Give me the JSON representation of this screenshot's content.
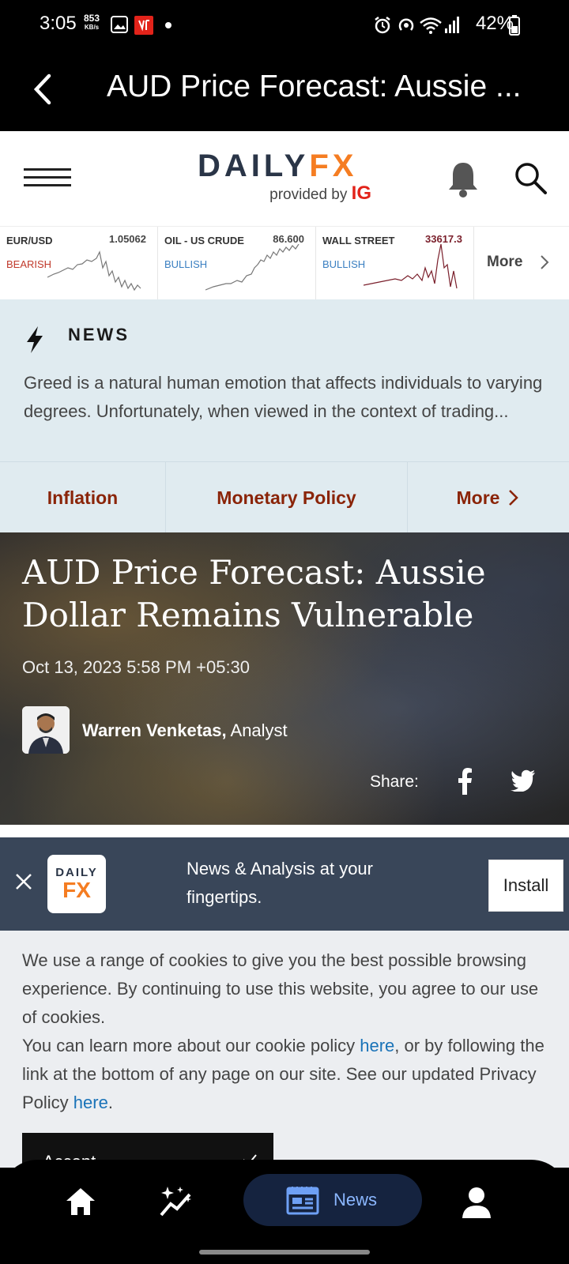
{
  "status_bar": {
    "time": "3:05",
    "net_speed": "853",
    "net_unit": "KB/s",
    "battery": "42%"
  },
  "app_bar": {
    "title": "AUD Price Forecast: Aussie ..."
  },
  "site_header": {
    "logo_dai": "DA",
    "logo_i": "I",
    "logo_ly": "LY",
    "logo_fx": "FX",
    "provided_by": "provided by",
    "ig": "IG"
  },
  "tickers": [
    {
      "name": "EUR/USD",
      "price": "1.05062",
      "sentiment": "BEARISH",
      "color": "#c0392b"
    },
    {
      "name": "OIL - US CRUDE",
      "price": "86.600",
      "sentiment": "BULLISH",
      "color": "#3a7fc1"
    },
    {
      "name": "WALL STREET",
      "price": "33617.3",
      "sentiment": "BULLISH",
      "color": "#3a7fc1"
    }
  ],
  "tickers_more": "More",
  "news_band": {
    "label": "NEWS",
    "description": "Greed is a natural human emotion that affects individuals to varying degrees. Unfortunately, when viewed in the context of trading..."
  },
  "topics": [
    "Inflation",
    "Monetary Policy",
    "More"
  ],
  "article": {
    "title": "AUD Price Forecast: Aussie Dollar Remains Vulnerable",
    "date": "Oct 13, 2023 5:58 PM +05:30",
    "author_name": "Warren Venketas,",
    "author_role": "Analyst",
    "share_label": "Share:"
  },
  "install_banner": {
    "logo_top": "DAILY",
    "logo_bottom": "FX",
    "message": "News & Analysis at your fingertips.",
    "button": "Install"
  },
  "cookie": {
    "p1": "We use a range of cookies to give you the best possible browsing experience. By continuing to use this website, you agree to our use of cookies.",
    "p2_a": "You can learn more about our cookie policy ",
    "link1": "here",
    "p2_b": ", or by following the link at the bottom of any page on our site. See our updated Privacy Policy ",
    "link2": "here",
    "p2_c": ".",
    "accept": "Accept"
  },
  "bottom_nav": {
    "news_label": "News"
  }
}
